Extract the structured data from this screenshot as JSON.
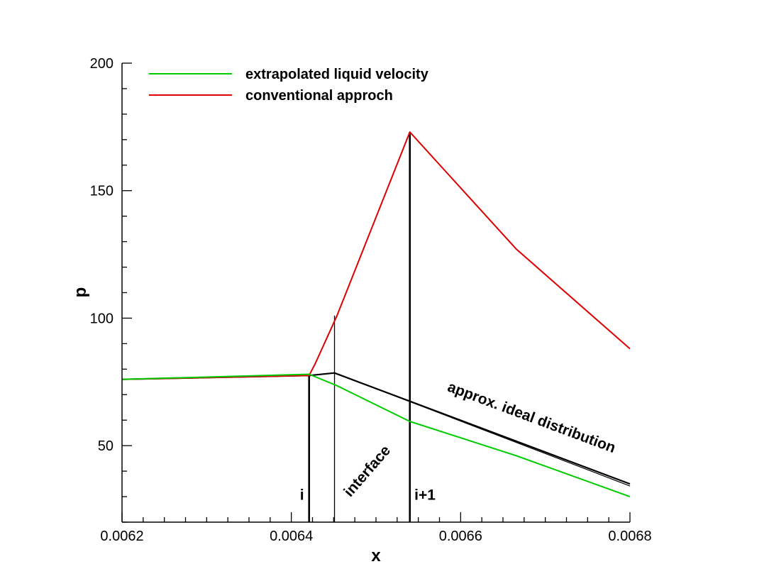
{
  "chart_data": {
    "type": "line",
    "xlabel": "x",
    "ylabel": "p",
    "xlim": [
      0.0062,
      0.0068
    ],
    "ylim": [
      20,
      200
    ],
    "xticks": [
      "0.0062",
      "0.0064",
      "0.0066",
      "0.0068"
    ],
    "xtick_values": [
      0.0062,
      0.0064,
      0.0066,
      0.0068
    ],
    "yticks": [
      "50",
      "100",
      "150",
      "200"
    ],
    "ytick_values": [
      50,
      100,
      150,
      200
    ],
    "legend_position": "top-left",
    "grid": false,
    "series": [
      {
        "name": "extrapolated liquid velocity",
        "color": "#00cc00",
        "x": [
          0.0062,
          0.006421,
          0.006454,
          0.00654,
          0.006666,
          0.0068
        ],
        "y": [
          76,
          78,
          73.5,
          59.5,
          46,
          30
        ]
      },
      {
        "name": "conventional approch",
        "color": "#dd0000",
        "x": [
          0.0062,
          0.006421,
          0.006428,
          0.006454,
          0.00654,
          0.006666,
          0.0068
        ],
        "y": [
          76,
          77.5,
          82,
          101,
          173,
          127,
          88
        ]
      },
      {
        "color": "#000000",
        "x": [
          0.0062,
          0.006421,
          0.006451,
          0.0068
        ],
        "y": [
          76,
          77.5,
          78.5,
          35
        ]
      }
    ],
    "vlines": [
      {
        "x": 0.006421,
        "ymin": 20,
        "ymax": 78,
        "bold": true
      },
      {
        "x": 0.006451,
        "ymin": 20,
        "ymax": 101,
        "bold": false
      },
      {
        "x": 0.00654,
        "ymin": 20,
        "ymax": 173,
        "bold": true
      }
    ],
    "annotations": [
      {
        "text": "i",
        "x": 0.00642,
        "y": 31
      },
      {
        "text": "interface",
        "x": 0.006458,
        "y": 31
      },
      {
        "text": "i+1",
        "x": 0.006542,
        "y": 31
      },
      {
        "text": "approx. ideal distribution",
        "x": 0.006575,
        "y": 66
      }
    ]
  }
}
